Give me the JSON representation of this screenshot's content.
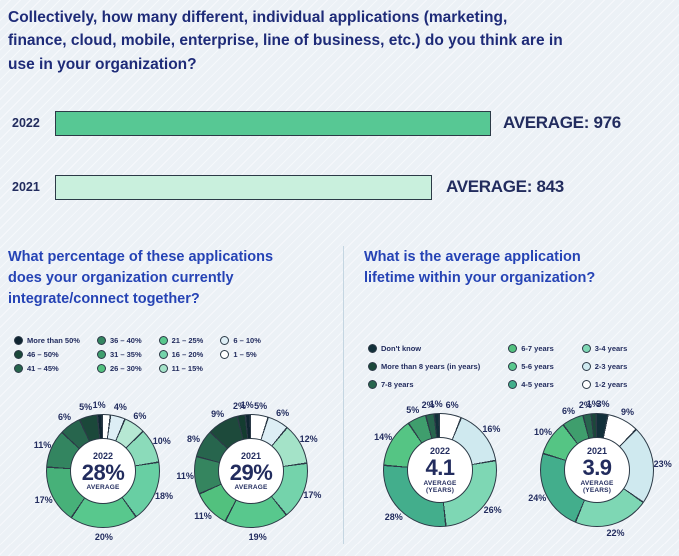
{
  "colors": {
    "background": "#ecf1f6",
    "top_question_text": "#1e2b78",
    "panel_question_text": "#2543b5",
    "label_text": "#222c5e",
    "wedge_outline": "#2c3a47",
    "divider": "#c5d6e2",
    "bar_2022": "#57c894",
    "bar_2021": "#c9f0dd"
  },
  "top_question": "Collectively, how many different, individual applications (marketing, finance, cloud, mobile, enterprise, line of business, etc.) do you think are in use in your organization?",
  "chart_data": [
    {
      "type": "bar",
      "title_lines": [
        "Collectively, how many different, individual applications (marketing,",
        "finance, cloud, mobile, enterprise, line of business, etc.) do you think are in",
        "use in your organization?"
      ],
      "categories": [
        "2022",
        "2021"
      ],
      "values": [
        976,
        843
      ],
      "value_labels": [
        "AVERAGE: 976",
        "AVERAGE: 843"
      ],
      "bar_colors": [
        "#57c894",
        "#c9f0dd"
      ]
    },
    {
      "type": "pie",
      "question": "What percentage of these applications does your organization currently integrate/connect together?",
      "question_lines": [
        "What percentage of these applications",
        "does your organization currently",
        "integrate/connect together?"
      ],
      "legend_columns": [
        [
          {
            "label": "More than 50%",
            "color": "#0f2531"
          },
          {
            "label": "46 – 50%",
            "color": "#1b483a"
          },
          {
            "label": "41 – 45%",
            "color": "#27654d"
          }
        ],
        [
          {
            "label": "36 – 40%",
            "color": "#338560"
          },
          {
            "label": "31 – 35%",
            "color": "#3f9e6d"
          },
          {
            "label": "26 – 30%",
            "color": "#52c17e"
          }
        ],
        [
          {
            "label": "21 – 25%",
            "color": "#58c88d"
          },
          {
            "label": "16 – 20%",
            "color": "#74d3ab"
          },
          {
            "label": "11 – 15%",
            "color": "#a4e3c8"
          }
        ],
        [
          {
            "label": "6 – 10%",
            "color": "#ddeef5"
          },
          {
            "label": "1 – 5%",
            "color": "#ffffff"
          }
        ]
      ],
      "donuts": [
        {
          "center": {
            "year": "2022",
            "value": "28%",
            "sub": "AVERAGE"
          },
          "segments": [
            {
              "label": "",
              "value": 2,
              "color": "#ffffff"
            },
            {
              "label": "4%",
              "value": 4,
              "color": "#ddeef5"
            },
            {
              "label": "6%",
              "value": 6,
              "color": "#b6e8d3"
            },
            {
              "label": "10%",
              "value": 10,
              "color": "#8bdbba"
            },
            {
              "label": "18%",
              "value": 18,
              "color": "#68cfa3"
            },
            {
              "label": "20%",
              "value": 20,
              "color": "#58c88d"
            },
            {
              "label": "17%",
              "value": 17,
              "color": "#47b179"
            },
            {
              "label": "11%",
              "value": 11,
              "color": "#338560"
            },
            {
              "label": "6%",
              "value": 6,
              "color": "#27654d"
            },
            {
              "label": "5%",
              "value": 5,
              "color": "#1b483a"
            },
            {
              "label": "1%",
              "value": 1,
              "color": "#0f2531"
            }
          ]
        },
        {
          "center": {
            "year": "2021",
            "value": "29%",
            "sub": "AVERAGE"
          },
          "segments": [
            {
              "label": "5%",
              "value": 5,
              "color": "#ffffff"
            },
            {
              "label": "6%",
              "value": 6,
              "color": "#ddeef5"
            },
            {
              "label": "12%",
              "value": 12,
              "color": "#a4e3c8"
            },
            {
              "label": "17%",
              "value": 17,
              "color": "#74d3ab"
            },
            {
              "label": "19%",
              "value": 19,
              "color": "#58c88d"
            },
            {
              "label": "11%",
              "value": 11,
              "color": "#52c17e"
            },
            {
              "label": "11%",
              "value": 11,
              "color": "#35855f"
            },
            {
              "label": "8%",
              "value": 8,
              "color": "#27654d"
            },
            {
              "label": "9%",
              "value": 9,
              "color": "#1d4a3b"
            },
            {
              "label": "2%",
              "value": 2,
              "color": "#143c30"
            },
            {
              "label": "1%",
              "value": 1,
              "color": "#0f2531"
            }
          ]
        }
      ]
    },
    {
      "type": "pie",
      "question": "What is the average application lifetime within your organization?",
      "question_lines": [
        "What is the average application",
        "lifetime within your organization?"
      ],
      "legend_columns": [
        [
          {
            "label": "Don't know",
            "color": "#12303a"
          },
          {
            "label": "More than 8 years (in years)",
            "color": "#1b483a"
          },
          {
            "label": "7-8 years",
            "color": "#27654d"
          }
        ],
        [
          {
            "label": "6-7 years",
            "color": "#52c17e"
          },
          {
            "label": "5-6 years",
            "color": "#58c88d"
          },
          {
            "label": "4-5 years",
            "color": "#43ae8c"
          }
        ],
        [
          {
            "label": "3-4 years",
            "color": "#7ed7b4"
          },
          {
            "label": "2-3 years",
            "color": "#cfe9ef"
          },
          {
            "label": "1-2 years",
            "color": "#ffffff"
          }
        ]
      ],
      "donuts": [
        {
          "center": {
            "year": "2022",
            "value": "4.1",
            "sub": "AVERAGE",
            "sub2": "(YEARS)"
          },
          "segments": [
            {
              "label": "6%",
              "value": 6,
              "color": "#ffffff"
            },
            {
              "label": "16%",
              "value": 16,
              "color": "#cfe9ef"
            },
            {
              "label": "26%",
              "value": 26,
              "color": "#7ed7b4"
            },
            {
              "label": "28%",
              "value": 28,
              "color": "#43ae8c"
            },
            {
              "label": "14%",
              "value": 14,
              "color": "#55c584"
            },
            {
              "label": "5%",
              "value": 5,
              "color": "#3f9e6d"
            },
            {
              "label": "2%",
              "value": 2,
              "color": "#27654d"
            },
            {
              "label": "1%",
              "value": 1,
              "color": "#12303a"
            }
          ]
        },
        {
          "center": {
            "year": "2021",
            "value": "3.9",
            "sub": "AVERAGE",
            "sub2": "(YEARS)"
          },
          "segments": [
            {
              "label": "3%",
              "value": 3,
              "color": "#12303a"
            },
            {
              "label": "9%",
              "value": 9,
              "color": "#ffffff"
            },
            {
              "label": "23%",
              "value": 23,
              "color": "#cfe9ef"
            },
            {
              "label": "22%",
              "value": 22,
              "color": "#7ed7b4"
            },
            {
              "label": "24%",
              "value": 24,
              "color": "#43ae8c"
            },
            {
              "label": "10%",
              "value": 10,
              "color": "#55c584"
            },
            {
              "label": "6%",
              "value": 6,
              "color": "#3f9e6d"
            },
            {
              "label": "2%",
              "value": 2,
              "color": "#27654d"
            },
            {
              "label": "1%",
              "value": 1,
              "color": "#1b483a"
            }
          ]
        }
      ]
    }
  ]
}
